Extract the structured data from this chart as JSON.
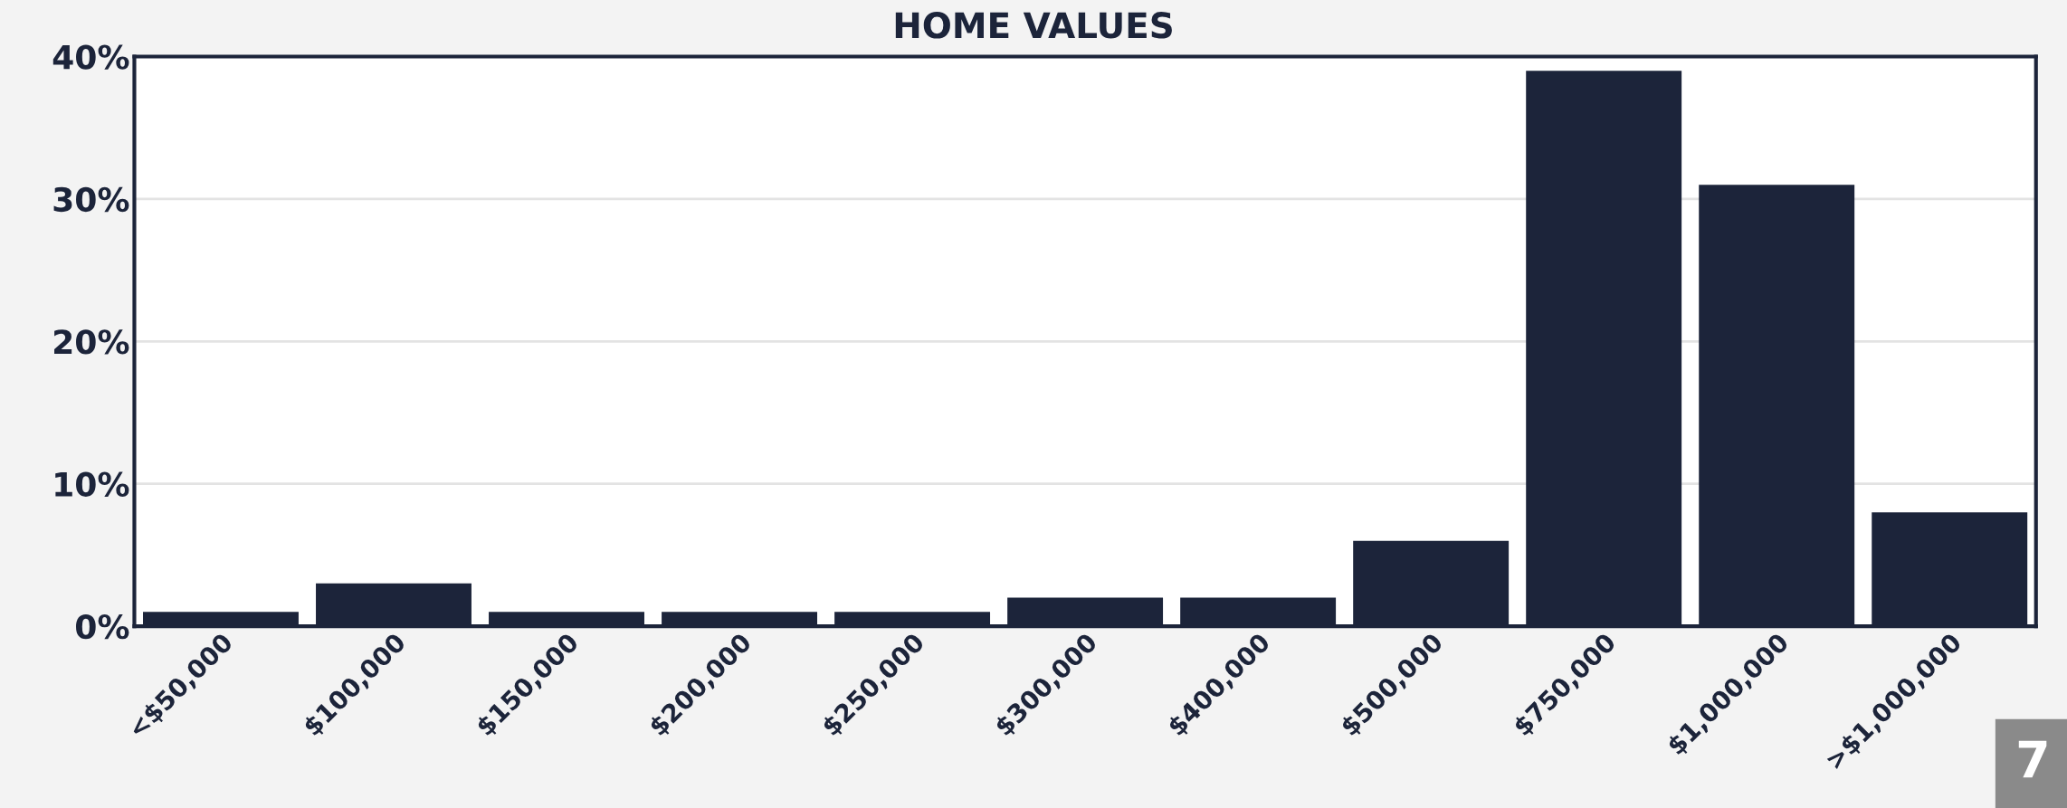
{
  "chart_data": {
    "type": "bar",
    "title": "HOME VALUES",
    "categories": [
      "<$50,000",
      "$100,000",
      "$150,000",
      "$200,000",
      "$250,000",
      "$300,000",
      "$400,000",
      "$500,000",
      "$750,000",
      "$1,000,000",
      ">$1,000,000"
    ],
    "values": [
      1,
      3,
      1,
      1,
      1,
      2,
      2,
      6,
      39,
      31,
      8
    ],
    "color": "#1c243a",
    "ylim": [
      0,
      40
    ],
    "yticks": [
      {
        "value": 0,
        "label": "0%"
      },
      {
        "value": 10,
        "label": "10%"
      },
      {
        "value": 20,
        "label": "20%"
      },
      {
        "value": 30,
        "label": "30%"
      },
      {
        "value": 40,
        "label": "40%"
      }
    ],
    "grid": "y",
    "annotations": [
      "7"
    ]
  }
}
